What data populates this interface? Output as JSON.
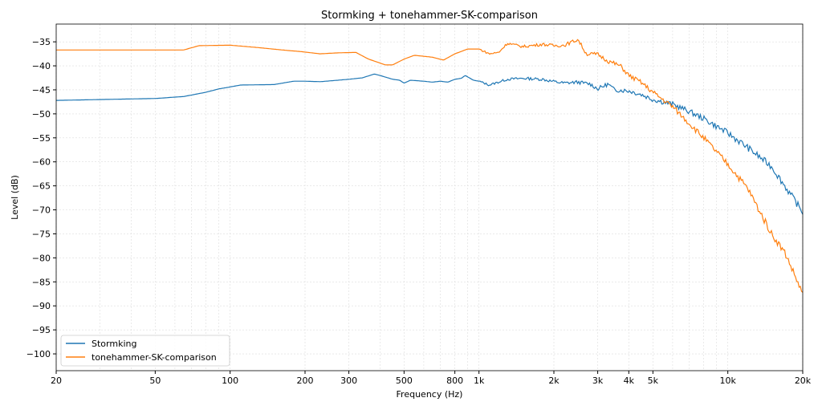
{
  "chart_data": {
    "type": "line",
    "title": "Stormking + tonehammer-SK-comparison",
    "xlabel": "Frequency (Hz)",
    "ylabel": "Level (dB)",
    "xscale": "log",
    "xlim": [
      20,
      20000
    ],
    "ylim": [
      -103.5,
      -31.3
    ],
    "grid": true,
    "legend_position": "bottom-left",
    "x_ticks": [
      {
        "value": 20,
        "label": "20"
      },
      {
        "value": 50,
        "label": "50"
      },
      {
        "value": 100,
        "label": "100"
      },
      {
        "value": 200,
        "label": "200"
      },
      {
        "value": 300,
        "label": "300"
      },
      {
        "value": 500,
        "label": "500"
      },
      {
        "value": 800,
        "label": "800"
      },
      {
        "value": 1000,
        "label": "1k"
      },
      {
        "value": 2000,
        "label": "2k"
      },
      {
        "value": 3000,
        "label": "3k"
      },
      {
        "value": 4000,
        "label": "4k"
      },
      {
        "value": 5000,
        "label": "5k"
      },
      {
        "value": 10000,
        "label": "10k"
      },
      {
        "value": 20000,
        "label": "20k"
      }
    ],
    "y_ticks": [
      -35,
      -40,
      -45,
      -50,
      -55,
      -60,
      -65,
      -70,
      -75,
      -80,
      -85,
      -90,
      -95,
      -100
    ],
    "series": [
      {
        "name": "Stormking",
        "color": "#1f77b4",
        "x": [
          20,
          50,
          65,
          80,
          90,
          100,
          110,
          150,
          180,
          200,
          230,
          270,
          300,
          340,
          380,
          400,
          450,
          480,
          500,
          530,
          600,
          650,
          700,
          750,
          800,
          850,
          880,
          950,
          1000,
          1100,
          1300,
          1500,
          1800,
          2000,
          2200,
          2500,
          2800,
          3000,
          3300,
          3500,
          4000,
          4500,
          5000,
          6000,
          7000,
          8000,
          10000,
          12000,
          15000,
          20000
        ],
        "y": [
          -47.2,
          -46.8,
          -46.4,
          -45.5,
          -44.8,
          -44.4,
          -44.0,
          -43.9,
          -43.2,
          -43.2,
          -43.3,
          -43.0,
          -42.8,
          -42.5,
          -41.7,
          -42.0,
          -42.8,
          -43.0,
          -43.6,
          -43.0,
          -43.2,
          -43.4,
          -43.2,
          -43.4,
          -42.8,
          -42.6,
          -42.0,
          -43.0,
          -43.2,
          -44.0,
          -42.8,
          -42.6,
          -42.8,
          -43.3,
          -43.6,
          -43.4,
          -43.8,
          -44.8,
          -43.8,
          -45.0,
          -45.2,
          -46.0,
          -47.0,
          -48.0,
          -49.5,
          -51.0,
          -54.0,
          -57.0,
          -61.0,
          -70.5
        ]
      },
      {
        "name": "tonehammer-SK-comparison",
        "color": "#ff7f0e",
        "x": [
          20,
          50,
          65,
          75,
          100,
          130,
          170,
          190,
          230,
          270,
          320,
          360,
          420,
          450,
          500,
          550,
          650,
          720,
          800,
          900,
          1000,
          1100,
          1200,
          1300,
          1500,
          1800,
          2000,
          2200,
          2500,
          2700,
          3000,
          3300,
          3700,
          4000,
          4500,
          5000,
          6000,
          7000,
          8000,
          10000,
          12000,
          15000,
          17000,
          20000
        ],
        "y": [
          -36.7,
          -36.7,
          -36.7,
          -35.8,
          -35.7,
          -36.2,
          -36.8,
          -37.0,
          -37.5,
          -37.3,
          -37.2,
          -38.6,
          -39.8,
          -39.8,
          -38.6,
          -37.8,
          -38.2,
          -38.8,
          -37.5,
          -36.5,
          -36.5,
          -37.5,
          -37.2,
          -35.3,
          -36.0,
          -35.5,
          -35.8,
          -35.7,
          -34.5,
          -37.5,
          -37.6,
          -39.0,
          -40.0,
          -42.0,
          -43.5,
          -45.5,
          -48.5,
          -52.0,
          -55.0,
          -60.5,
          -65.5,
          -75.0,
          -79.0,
          -87.5
        ]
      }
    ]
  }
}
